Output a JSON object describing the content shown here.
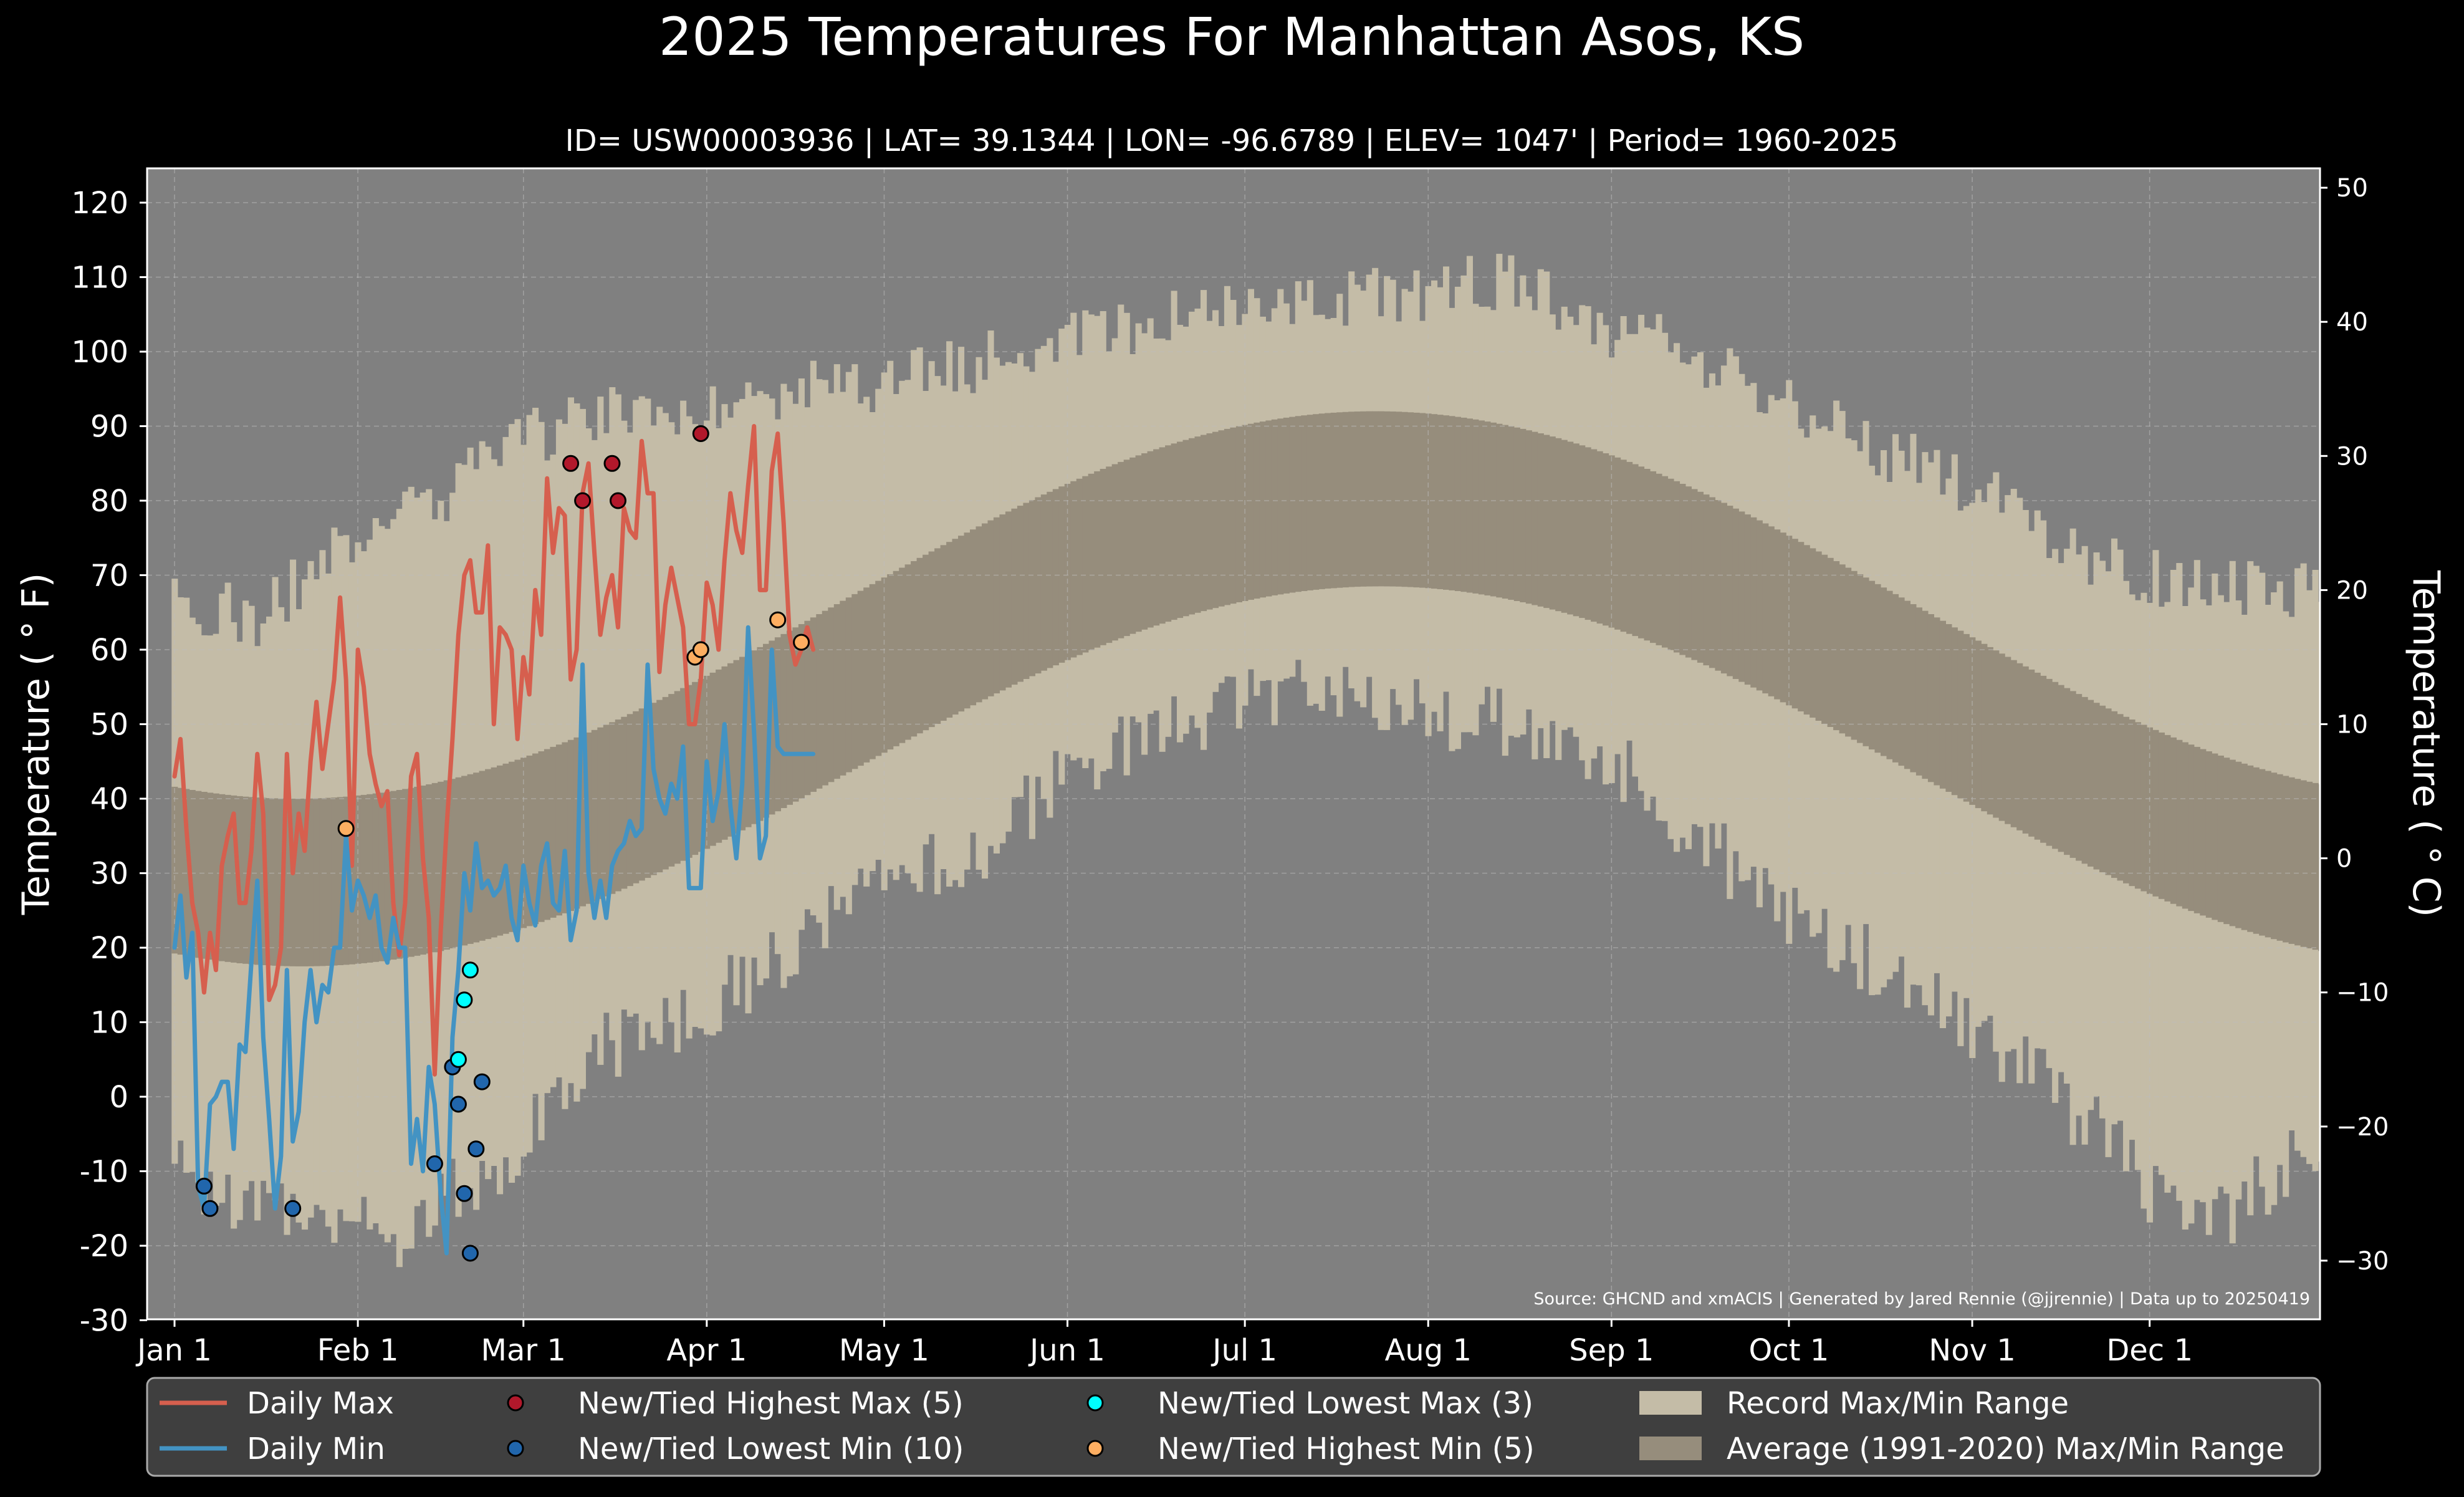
{
  "chart_data": {
    "type": "line",
    "title": "2025 Temperatures For Manhattan Asos, KS",
    "subtitle": "ID= USW00003936 | LAT= 39.1344 | LON= -96.6789 | ELEV= 1047' | Period= 1960-2025",
    "ylabel_left": "Temperature ( ° F)",
    "ylabel_right": "Temperature ( ° C)",
    "source": "Source: GHCND and xmACIS | Generated by Jared Rennie (@jjrennie) | Data up to 20250419",
    "ylim_f": [
      -30,
      125
    ],
    "yticks_f": [
      -30,
      -20,
      -10,
      0,
      10,
      20,
      30,
      40,
      50,
      60,
      70,
      80,
      90,
      100,
      110,
      120
    ],
    "yticks_c": [
      -30,
      -20,
      -10,
      0,
      10,
      20,
      30,
      40,
      50
    ],
    "xlim_day": [
      0,
      365
    ],
    "x_ticks": [
      {
        "label": "Jan 1",
        "day": 1
      },
      {
        "label": "Feb 1",
        "day": 32
      },
      {
        "label": "Mar 1",
        "day": 60
      },
      {
        "label": "Apr 1",
        "day": 91
      },
      {
        "label": "May 1",
        "day": 121
      },
      {
        "label": "Jun 1",
        "day": 152
      },
      {
        "label": "Jul 1",
        "day": 182
      },
      {
        "label": "Aug 1",
        "day": 213
      },
      {
        "label": "Sep 1",
        "day": 244
      },
      {
        "label": "Oct 1",
        "day": 274
      },
      {
        "label": "Nov 1",
        "day": 305
      },
      {
        "label": "Dec 1",
        "day": 335
      }
    ],
    "grid": true,
    "legend_position": "bottom",
    "colors": {
      "background": "#000000",
      "plot_bg": "#808080",
      "record_range": "#c4bca7",
      "average_range": "#968d7c",
      "daily_max": "#d65f4e",
      "daily_min": "#4393c3",
      "record_high_max": "#b2182b",
      "record_low_min": "#2166ac",
      "record_low_max": "#00ffff",
      "record_high_min": "#fdae61"
    },
    "record_max_anchors": [
      [
        1,
        67
      ],
      [
        15,
        64
      ],
      [
        32,
        76
      ],
      [
        45,
        80
      ],
      [
        60,
        88
      ],
      [
        75,
        92
      ],
      [
        91,
        93
      ],
      [
        105,
        95
      ],
      [
        121,
        96
      ],
      [
        135,
        98
      ],
      [
        152,
        102
      ],
      [
        166,
        104
      ],
      [
        182,
        105
      ],
      [
        197,
        107
      ],
      [
        213,
        108
      ],
      [
        228,
        110
      ],
      [
        244,
        103
      ],
      [
        258,
        100
      ],
      [
        274,
        93
      ],
      [
        289,
        87
      ],
      [
        305,
        82
      ],
      [
        320,
        74
      ],
      [
        335,
        70
      ],
      [
        350,
        68
      ],
      [
        365,
        68
      ]
    ],
    "record_min_anchors": [
      [
        1,
        -10
      ],
      [
        15,
        -15
      ],
      [
        32,
        -15
      ],
      [
        40,
        -20
      ],
      [
        45,
        -14
      ],
      [
        55,
        -10
      ],
      [
        60,
        -5
      ],
      [
        70,
        5
      ],
      [
        80,
        9
      ],
      [
        91,
        12
      ],
      [
        105,
        20
      ],
      [
        121,
        28
      ],
      [
        135,
        32
      ],
      [
        152,
        43
      ],
      [
        166,
        48
      ],
      [
        182,
        53
      ],
      [
        197,
        56
      ],
      [
        213,
        51
      ],
      [
        228,
        50
      ],
      [
        244,
        45
      ],
      [
        258,
        35
      ],
      [
        274,
        25
      ],
      [
        289,
        18
      ],
      [
        305,
        8
      ],
      [
        320,
        0
      ],
      [
        330,
        -8
      ],
      [
        335,
        -14
      ],
      [
        350,
        -15
      ],
      [
        365,
        -5
      ]
    ],
    "average": {
      "max_low": 40,
      "max_high": 92,
      "max_peak_day": 204,
      "min_low": 17.5,
      "min_high": 68.5,
      "min_peak_day": 205
    },
    "series": [
      {
        "name": "Daily Max",
        "x": [
          1,
          2,
          3,
          4,
          5,
          6,
          7,
          8,
          9,
          10,
          11,
          12,
          13,
          14,
          15,
          16,
          17,
          18,
          19,
          20,
          21,
          22,
          23,
          24,
          25,
          26,
          27,
          28,
          29,
          30,
          31,
          32,
          33,
          34,
          35,
          36,
          37,
          38,
          39,
          40,
          41,
          42,
          43,
          44,
          45,
          46,
          47,
          48,
          49,
          50,
          51,
          52,
          53,
          54,
          55,
          56,
          57,
          58,
          59,
          60,
          61,
          62,
          63,
          64,
          65,
          66,
          67,
          68,
          69,
          70,
          71,
          72,
          73,
          74,
          75,
          76,
          77,
          78,
          79,
          80,
          81,
          82,
          83,
          84,
          85,
          86,
          87,
          88,
          89,
          90,
          91,
          92,
          93,
          94,
          95,
          96,
          97,
          98,
          99,
          100,
          101,
          102,
          103,
          104,
          105,
          106,
          107,
          108,
          109
        ],
        "values": [
          43,
          48,
          36,
          26,
          22,
          14,
          22,
          17,
          31,
          35,
          38,
          26,
          26,
          33,
          46,
          38,
          13,
          15,
          20,
          46,
          30,
          38,
          33,
          45,
          53,
          44,
          50,
          56,
          67,
          56,
          31,
          60,
          55,
          46,
          42,
          39,
          41,
          26,
          19,
          26,
          43,
          46,
          32,
          24,
          3,
          22,
          36,
          48,
          62,
          70,
          72,
          65,
          65,
          74,
          50,
          63,
          62,
          60,
          48,
          59,
          54,
          68,
          62,
          83,
          73,
          79,
          78,
          56,
          60,
          81,
          85,
          73,
          62,
          67,
          70,
          63,
          79,
          76,
          75,
          88,
          81,
          81,
          57,
          66,
          71,
          67,
          63,
          50,
          50,
          56,
          69,
          66,
          60,
          72,
          81,
          76,
          73,
          82,
          90,
          68,
          68,
          84,
          89,
          77,
          62,
          58,
          60,
          63,
          60
        ],
        "color": "#d65f4e"
      },
      {
        "name": "Daily Min",
        "x": [
          1,
          2,
          3,
          4,
          5,
          6,
          7,
          8,
          9,
          10,
          11,
          12,
          13,
          14,
          15,
          16,
          17,
          18,
          19,
          20,
          21,
          22,
          23,
          24,
          25,
          26,
          27,
          28,
          29,
          30,
          31,
          32,
          33,
          34,
          35,
          36,
          37,
          38,
          39,
          40,
          41,
          42,
          43,
          44,
          45,
          46,
          47,
          48,
          49,
          50,
          51,
          52,
          53,
          54,
          55,
          56,
          57,
          58,
          59,
          60,
          61,
          62,
          63,
          64,
          65,
          66,
          67,
          68,
          69,
          70,
          71,
          72,
          73,
          74,
          75,
          76,
          77,
          78,
          79,
          80,
          81,
          82,
          83,
          84,
          85,
          86,
          87,
          88,
          89,
          90,
          91,
          92,
          93,
          94,
          95,
          96,
          97,
          98,
          99,
          100,
          101,
          102,
          103,
          104,
          105,
          106,
          107,
          108,
          109
        ],
        "values": [
          20,
          27,
          16,
          22,
          -12,
          -15,
          -1,
          0,
          2,
          2,
          -7,
          7,
          6,
          18,
          29,
          8,
          -3,
          -15,
          -8,
          17,
          -6,
          -2,
          10,
          17,
          10,
          15,
          14,
          20,
          20,
          35,
          25,
          29,
          27,
          24,
          27,
          20,
          18,
          24,
          20,
          20,
          -9,
          -3,
          -10,
          4,
          -1,
          -13,
          -21,
          8,
          17,
          30,
          25,
          34,
          28,
          29,
          27,
          28,
          31,
          24,
          21,
          31,
          26,
          23,
          31,
          34,
          26,
          25,
          33,
          21,
          25,
          58,
          30,
          24,
          29,
          24,
          31,
          33,
          34,
          37,
          35,
          36,
          58,
          44,
          40,
          38,
          42,
          40,
          47,
          28,
          28,
          28,
          45,
          37,
          41,
          50,
          39,
          32,
          42,
          63,
          49,
          32,
          35,
          60,
          47,
          46,
          46,
          46,
          46,
          46,
          46
        ],
        "color": "#4393c3"
      }
    ],
    "markers": [
      {
        "name": "New/Tied Highest Max (5)",
        "color": "#b2182b",
        "points": [
          [
            68,
            85
          ],
          [
            70,
            80
          ],
          [
            75,
            85
          ],
          [
            76,
            80
          ],
          [
            90,
            89
          ]
        ]
      },
      {
        "name": "New/Tied Lowest Min (10)",
        "color": "#2166ac",
        "points": [
          [
            6,
            -12
          ],
          [
            7,
            -15
          ],
          [
            21,
            -15
          ],
          [
            45,
            -9
          ],
          [
            48,
            4
          ],
          [
            49,
            -1
          ],
          [
            50,
            -13
          ],
          [
            51,
            -21
          ],
          [
            52,
            -7
          ],
          [
            53,
            2
          ]
        ]
      },
      {
        "name": "New/Tied Lowest Max (3)",
        "color": "#00ffff",
        "points": [
          [
            49,
            5
          ],
          [
            50,
            13
          ],
          [
            51,
            17
          ]
        ]
      },
      {
        "name": "New/Tied Highest Min (5)",
        "color": "#fdae61",
        "points": [
          [
            30,
            36
          ],
          [
            89,
            59
          ],
          [
            90,
            60
          ],
          [
            103,
            64
          ],
          [
            107,
            61
          ]
        ]
      }
    ],
    "legend": [
      {
        "label": "Daily Max",
        "kind": "line",
        "color": "#d65f4e"
      },
      {
        "label": "Daily Min",
        "kind": "line",
        "color": "#4393c3"
      },
      {
        "label": "New/Tied Highest Max (5)",
        "kind": "dot",
        "color": "#b2182b"
      },
      {
        "label": "New/Tied Lowest Min (10)",
        "kind": "dot",
        "color": "#2166ac"
      },
      {
        "label": "New/Tied Lowest Max (3)",
        "kind": "dot",
        "color": "#00ffff"
      },
      {
        "label": "New/Tied Highest Min (5)",
        "kind": "dot",
        "color": "#fdae61"
      },
      {
        "label": "Record Max/Min Range",
        "kind": "patch",
        "color": "#c4bca7"
      },
      {
        "label": "Average (1991-2020) Max/Min Range",
        "kind": "patch",
        "color": "#968d7c"
      }
    ]
  }
}
